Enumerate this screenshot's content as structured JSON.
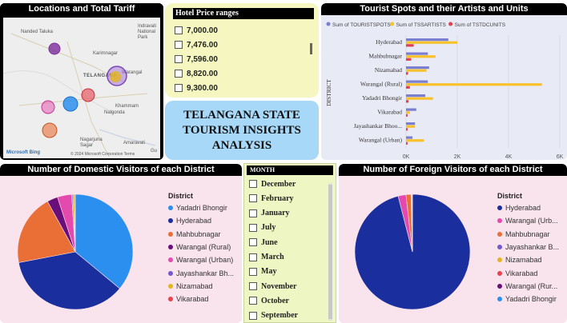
{
  "map": {
    "title": "Locations and Total Tariff",
    "towns": [
      "Nanded Taluka",
      "Indravati National Park",
      "Karimnagar",
      "TELANGANA",
      "Warangal",
      "Nalgonda",
      "Khammam",
      "Nagarjuna Sagar",
      "Amaravati",
      "Gu"
    ],
    "attribution": "© 2024 Microsoft Corporation Terms",
    "brand": "Microsoft Bing"
  },
  "hotel": {
    "header": "Hotel Price ranges",
    "items": [
      "7,000.00",
      "7,476.00",
      "7,596.00",
      "8,820.00",
      "9,300.00"
    ]
  },
  "title_card": {
    "line1": "TELANGANA STATE",
    "line2": "TOURISM INSIGHTS",
    "line3": "ANALYSIS"
  },
  "months": {
    "header": "MONTH",
    "items": [
      "December",
      "February",
      "January",
      "July",
      "June",
      "March",
      "May",
      "November",
      "October",
      "September"
    ]
  },
  "domestic": {
    "title": "Number of Domestic Visitors of each District",
    "legend_title": "District"
  },
  "foreign": {
    "title": "Number of Foreign Visitors of each District",
    "legend_title": "District"
  },
  "chart_data": [
    {
      "type": "bar",
      "orientation": "horizontal",
      "title": "Tourist Spots and their Artists and Units",
      "ylabel": "DISTRICT",
      "xlabel": "",
      "categories": [
        "Hyderabad",
        "Mahbubnagar",
        "Nizamabad",
        "Warangal (Rural)",
        "Yadadri Bhongir",
        "Vikarabad",
        "Jayashankar Bhoo...",
        "Warangal (Urban)"
      ],
      "series": [
        {
          "name": "Sum of TOURISTSPOTS",
          "color": "#7b7fd1",
          "values": [
            1650,
            850,
            900,
            850,
            750,
            400,
            350,
            250
          ]
        },
        {
          "name": "Sum of TSSARTISTS",
          "color": "#f8c22c",
          "values": [
            2000,
            1150,
            800,
            5300,
            1050,
            150,
            350,
            700
          ]
        },
        {
          "name": "Sum of TSTDCUNITS",
          "color": "#e0404f",
          "values": [
            300,
            200,
            80,
            150,
            100,
            60,
            60,
            60
          ]
        }
      ],
      "xticks": [
        "0K",
        "2K",
        "4K",
        "6K"
      ],
      "xlim": [
        0,
        6000
      ],
      "legend": "top"
    },
    {
      "type": "pie",
      "title": "Number of Domestic Visitors of each District",
      "labels": [
        "Yadadri Bhongir",
        "Hyderabad",
        "Mahbubnagar",
        "Warangal (Rural)",
        "Warangal (Urban)",
        "Jayashankar Bh...",
        "Nizamabad",
        "Vikarabad"
      ],
      "colors": [
        "#2b8ff0",
        "#1a2e9e",
        "#ea6f37",
        "#6a0f7a",
        "#e44aad",
        "#7359d0",
        "#e3b51e",
        "#e8434f"
      ],
      "values": [
        36,
        36,
        20,
        3,
        4,
        0.3,
        0.5,
        0.2
      ],
      "legend": "right"
    },
    {
      "type": "pie",
      "title": "Number of Foreign Visitors of each District",
      "labels": [
        "Hyderabad",
        "Warangal (Urb...",
        "Mahbubnagar",
        "Jayashankar B...",
        "Nizamabad",
        "Vikarabad",
        "Warangal (Rur...",
        "Yadadri Bhongir"
      ],
      "colors": [
        "#1a2e9e",
        "#e44aad",
        "#ea6f37",
        "#7359d0",
        "#e3b51e",
        "#e8434f",
        "#6a0f7a",
        "#2b8ff0"
      ],
      "values": [
        96,
        2.2,
        1.4,
        0.1,
        0.1,
        0.1,
        0.05,
        0.05
      ],
      "legend": "right"
    }
  ]
}
